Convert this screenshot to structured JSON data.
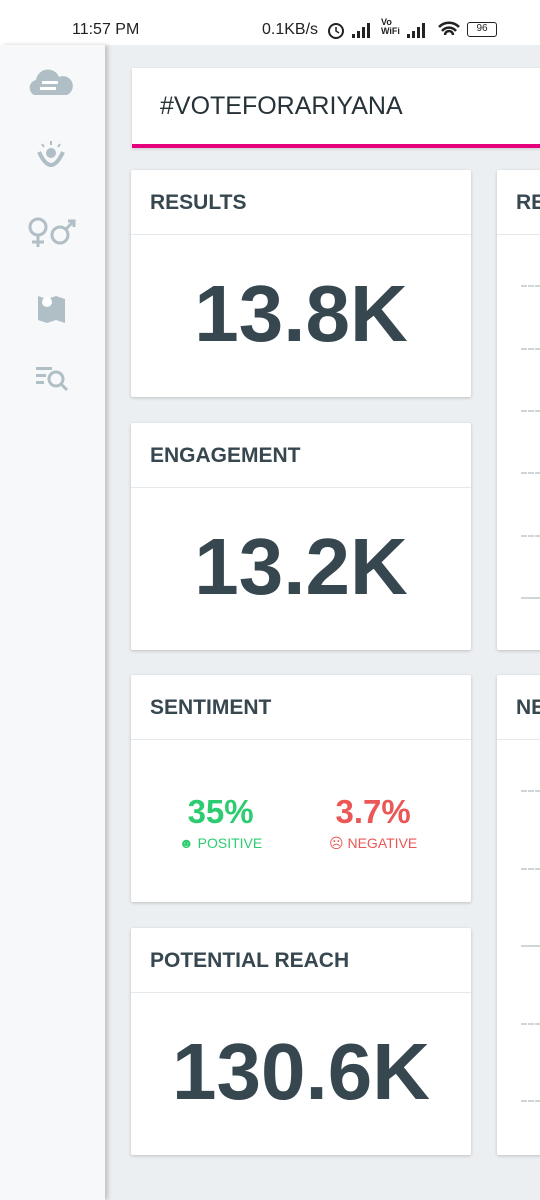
{
  "status_bar": {
    "time": "11:57 PM",
    "speed": "0.1KB/s",
    "wifi_label": "Vo\nWiFi",
    "battery": "96"
  },
  "search": {
    "query": "#VOTEFORARIYANA"
  },
  "cards": [
    {
      "title": "RESULTS",
      "value": "13.8K"
    },
    {
      "title": "ENGAGEMENT",
      "value": "13.2K"
    },
    {
      "title": "SENTIMENT",
      "positive": {
        "value": "35%",
        "label": "POSITIVE"
      },
      "negative": {
        "value": "3.7%",
        "label": "NEGATIVE"
      }
    },
    {
      "title": "POTENTIAL REACH",
      "value": "130.6K"
    }
  ],
  "side_cards": [
    {
      "title": "RE"
    },
    {
      "title": "NE"
    }
  ]
}
